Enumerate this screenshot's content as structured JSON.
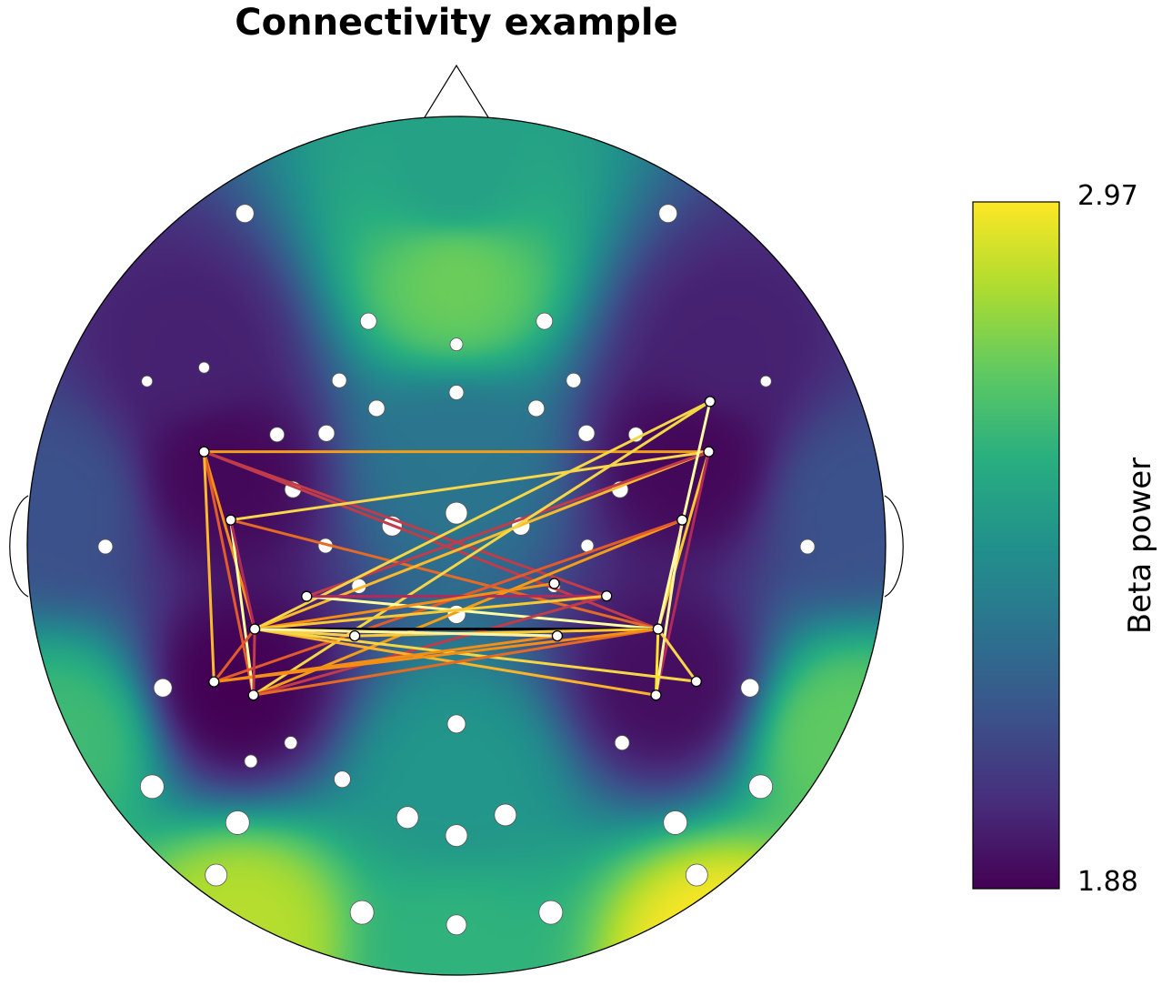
{
  "chart_data": {
    "type": "topomap-connectivity",
    "title": "Connectivity example",
    "colorbar": {
      "label": "Beta power",
      "min": 1.88,
      "max": 2.97,
      "min_label": "1.88",
      "max_label": "2.97",
      "colormap": "viridis",
      "colors": [
        "#440154",
        "#472d7b",
        "#3b528b",
        "#2c728e",
        "#21918c",
        "#28ae80",
        "#5ec962",
        "#addc30",
        "#fde725"
      ]
    },
    "field_sources": [
      {
        "u": 0.0,
        "v": 0.62,
        "value": 2.72
      },
      {
        "u": 0.0,
        "v": 0.85,
        "value": 2.5
      },
      {
        "u": -0.55,
        "v": 0.17,
        "value": 1.9
      },
      {
        "u": 0.55,
        "v": 0.2,
        "value": 1.9
      },
      {
        "u": -0.52,
        "v": -0.33,
        "value": 1.88
      },
      {
        "u": 0.5,
        "v": -0.32,
        "value": 1.92
      },
      {
        "u": -0.62,
        "v": 0.45,
        "value": 1.98
      },
      {
        "u": 0.62,
        "v": 0.45,
        "value": 1.98
      },
      {
        "u": 0.0,
        "v": 0.2,
        "value": 2.3
      },
      {
        "u": 0.0,
        "v": -0.55,
        "value": 2.45
      },
      {
        "u": -0.5,
        "v": -0.9,
        "value": 2.85
      },
      {
        "u": 0.62,
        "v": -0.95,
        "value": 2.97
      },
      {
        "u": 0.0,
        "v": -0.95,
        "value": 2.58
      },
      {
        "u": -0.9,
        "v": -0.45,
        "value": 2.62
      },
      {
        "u": 0.9,
        "v": -0.45,
        "value": 2.7
      },
      {
        "u": -0.92,
        "v": 0.1,
        "value": 2.15
      },
      {
        "u": 0.92,
        "v": 0.1,
        "value": 2.15
      }
    ],
    "electrodes": [
      {
        "u": -0.493,
        "v": 0.774,
        "size": 10
      },
      {
        "u": 0.493,
        "v": 0.774,
        "size": 10
      },
      {
        "u": -0.205,
        "v": 0.523,
        "size": 9
      },
      {
        "u": 0.205,
        "v": 0.523,
        "size": 9
      },
      {
        "u": 0.0,
        "v": 0.469,
        "size": 7
      },
      {
        "u": -0.588,
        "v": 0.415,
        "size": 6
      },
      {
        "u": -0.721,
        "v": 0.383,
        "size": 6
      },
      {
        "u": 0.721,
        "v": 0.383,
        "size": 6
      },
      {
        "u": -0.273,
        "v": 0.385,
        "size": 8
      },
      {
        "u": 0.273,
        "v": 0.385,
        "size": 8
      },
      {
        "u": 0.0,
        "v": 0.357,
        "size": 8
      },
      {
        "u": -0.186,
        "v": 0.32,
        "size": 9
      },
      {
        "u": 0.186,
        "v": 0.32,
        "size": 9
      },
      {
        "u": -0.418,
        "v": 0.259,
        "size": 8
      },
      {
        "u": -0.303,
        "v": 0.262,
        "size": 9
      },
      {
        "u": 0.303,
        "v": 0.262,
        "size": 9
      },
      {
        "u": 0.418,
        "v": 0.259,
        "size": 8
      },
      {
        "u": -0.381,
        "v": 0.131,
        "size": 9
      },
      {
        "u": 0.381,
        "v": 0.131,
        "size": 9
      },
      {
        "u": 0.0,
        "v": 0.076,
        "size": 12
      },
      {
        "u": -0.15,
        "v": 0.046,
        "size": 11
      },
      {
        "u": 0.15,
        "v": 0.046,
        "size": 10
      },
      {
        "u": -0.305,
        "v": 0.0,
        "size": 8
      },
      {
        "u": 0.305,
        "v": 0.0,
        "size": 7
      },
      {
        "u": -0.818,
        "v": -0.002,
        "size": 8
      },
      {
        "u": 0.818,
        "v": -0.002,
        "size": 8
      },
      {
        "u": -0.227,
        "v": -0.094,
        "size": 8
      },
      {
        "u": 0.227,
        "v": -0.094,
        "size": 7
      },
      {
        "u": 0.0,
        "v": -0.16,
        "size": 10
      },
      {
        "u": -0.684,
        "v": -0.331,
        "size": 10
      },
      {
        "u": 0.684,
        "v": -0.331,
        "size": 10
      },
      {
        "u": 0.0,
        "v": -0.415,
        "size": 10
      },
      {
        "u": -0.386,
        "v": -0.459,
        "size": 7
      },
      {
        "u": 0.386,
        "v": -0.459,
        "size": 8
      },
      {
        "u": -0.479,
        "v": -0.502,
        "size": 7
      },
      {
        "u": -0.266,
        "v": -0.544,
        "size": 9
      },
      {
        "u": -0.709,
        "v": -0.561,
        "size": 13
      },
      {
        "u": 0.709,
        "v": -0.561,
        "size": 13
      },
      {
        "u": -0.114,
        "v": -0.633,
        "size": 12
      },
      {
        "u": 0.114,
        "v": -0.627,
        "size": 12
      },
      {
        "u": -0.51,
        "v": -0.645,
        "size": 13
      },
      {
        "u": 0.51,
        "v": -0.645,
        "size": 13
      },
      {
        "u": 0.0,
        "v": -0.675,
        "size": 12
      },
      {
        "u": -0.56,
        "v": -0.767,
        "size": 12
      },
      {
        "u": 0.56,
        "v": -0.767,
        "size": 12
      },
      {
        "u": -0.22,
        "v": -0.854,
        "size": 13
      },
      {
        "u": 0.22,
        "v": -0.854,
        "size": 13
      },
      {
        "u": 0.0,
        "v": -0.883,
        "size": 11
      }
    ],
    "nodes": [
      {
        "id": "n1",
        "u": -0.588,
        "v": 0.219
      },
      {
        "id": "n2",
        "u": 0.588,
        "v": 0.219
      },
      {
        "id": "n3",
        "u": -0.526,
        "v": 0.06
      },
      {
        "id": "n4",
        "u": 0.526,
        "v": 0.06
      },
      {
        "id": "n5",
        "u": -0.349,
        "v": -0.118
      },
      {
        "id": "n6",
        "u": 0.35,
        "v": -0.117
      },
      {
        "id": "n7",
        "u": 0.228,
        "v": -0.088
      },
      {
        "id": "n8",
        "u": 0.591,
        "v": 0.336
      },
      {
        "id": "n9",
        "u": -0.47,
        "v": -0.194
      },
      {
        "id": "n10",
        "u": 0.47,
        "v": -0.194
      },
      {
        "id": "n11",
        "u": -0.565,
        "v": -0.317
      },
      {
        "id": "n12",
        "u": 0.559,
        "v": -0.316
      },
      {
        "id": "n13",
        "u": -0.473,
        "v": -0.348
      },
      {
        "id": "n14",
        "u": 0.465,
        "v": -0.348
      },
      {
        "id": "n15",
        "u": -0.237,
        "v": -0.21
      },
      {
        "id": "n16",
        "u": 0.235,
        "v": -0.21
      }
    ],
    "connections": [
      {
        "from": "n1",
        "to": "n2",
        "color": "#f49d17"
      },
      {
        "from": "n1",
        "to": "n10",
        "color": "#c13b4a"
      },
      {
        "from": "n1",
        "to": "n6",
        "color": "#c13b4a"
      },
      {
        "from": "n1",
        "to": "n9",
        "color": "#f48e15"
      },
      {
        "from": "n1",
        "to": "n13",
        "color": "#e45b2a"
      },
      {
        "from": "n1",
        "to": "n11",
        "color": "#fbba2c"
      },
      {
        "from": "n3",
        "to": "n2",
        "color": "#fad64a"
      },
      {
        "from": "n3",
        "to": "n10",
        "color": "#e46a26"
      },
      {
        "from": "n3",
        "to": "n13",
        "color": "#fcfea2"
      },
      {
        "from": "n3",
        "to": "n9",
        "color": "#b12a5a"
      },
      {
        "from": "n2",
        "to": "n9",
        "color": "#fbba2c"
      },
      {
        "from": "n2",
        "to": "n5",
        "color": "#c13b4a"
      },
      {
        "from": "n2",
        "to": "n10",
        "color": "#f9c932"
      },
      {
        "from": "n2",
        "to": "n14",
        "color": "#b12a5a"
      },
      {
        "from": "n8",
        "to": "n13",
        "color": "#f5d746"
      },
      {
        "from": "n8",
        "to": "n10",
        "color": "#fcfea2"
      },
      {
        "from": "n8",
        "to": "n9",
        "color": "#f5d746"
      },
      {
        "from": "n4",
        "to": "n13",
        "color": "#f49d17"
      },
      {
        "from": "n4",
        "to": "n14",
        "color": "#fdf3a5"
      },
      {
        "from": "n4",
        "to": "n11",
        "color": "#e45b2a"
      },
      {
        "from": "n5",
        "to": "n10",
        "color": "#fcfea2"
      },
      {
        "from": "n5",
        "to": "n6",
        "color": "#b12a5a"
      },
      {
        "from": "n7",
        "to": "n9",
        "color": "#f48e15"
      },
      {
        "from": "n6",
        "to": "n13",
        "color": "#c13b4a"
      },
      {
        "from": "n6",
        "to": "n9",
        "color": "#f9c932"
      },
      {
        "from": "n9",
        "to": "n10",
        "color": "#000004"
      },
      {
        "from": "n9",
        "to": "n14",
        "color": "#fbb32b"
      },
      {
        "from": "n9",
        "to": "n12",
        "color": "#f5d746"
      },
      {
        "from": "n9",
        "to": "n15",
        "color": "#f4d04c"
      },
      {
        "from": "n15",
        "to": "n10",
        "color": "#f9c932"
      },
      {
        "from": "n16",
        "to": "n9",
        "color": "#f9c932"
      },
      {
        "from": "n13",
        "to": "n10",
        "color": "#e46a26"
      },
      {
        "from": "n11",
        "to": "n10",
        "color": "#f48e15"
      },
      {
        "from": "n11",
        "to": "n16",
        "color": "#f48e15"
      },
      {
        "from": "n11",
        "to": "n9",
        "color": "#e45b2a"
      },
      {
        "from": "n13",
        "to": "n9",
        "color": "#c13b4a"
      },
      {
        "from": "n14",
        "to": "n10",
        "color": "#fde725"
      },
      {
        "from": "n12",
        "to": "n10",
        "color": "#fad64a"
      },
      {
        "from": "n9",
        "to": "n16",
        "color": "#fdf3a5"
      }
    ]
  }
}
